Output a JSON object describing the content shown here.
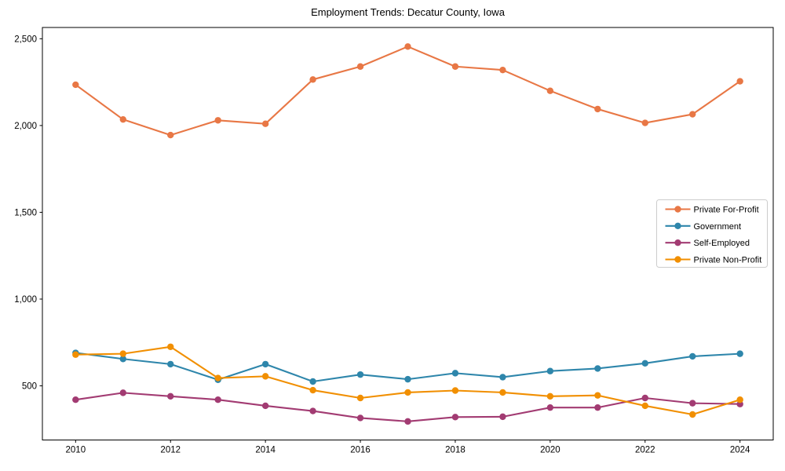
{
  "figure": {
    "background": "#ffffff",
    "frame_color": "#000000",
    "legend_border_color": "#cccccc",
    "legend_background": "#ffffff"
  },
  "chart_data": {
    "type": "line",
    "title": "Employment Trends: Decatur County, Iowa",
    "xlabel": "",
    "ylabel": "",
    "x": [
      2010,
      2011,
      2012,
      2013,
      2014,
      2015,
      2016,
      2017,
      2018,
      2019,
      2020,
      2021,
      2022,
      2023,
      2024
    ],
    "series": [
      {
        "name": "Private For-Profit",
        "color": "#E87745",
        "values": [
          2235,
          2035,
          1945,
          2030,
          2010,
          2265,
          2340,
          2455,
          2340,
          2320,
          2200,
          2095,
          2015,
          2065,
          2255
        ]
      },
      {
        "name": "Government",
        "color": "#2E86AB",
        "values": [
          690,
          655,
          625,
          535,
          625,
          525,
          565,
          538,
          573,
          550,
          585,
          600,
          630,
          670,
          685
        ]
      },
      {
        "name": "Self-Employed",
        "color": "#A23B72",
        "values": [
          420,
          460,
          440,
          420,
          385,
          355,
          315,
          295,
          320,
          322,
          375,
          375,
          430,
          400,
          395
        ]
      },
      {
        "name": "Private Non-Profit",
        "color": "#F18F01",
        "values": [
          680,
          685,
          725,
          545,
          555,
          475,
          430,
          462,
          473,
          462,
          440,
          445,
          385,
          335,
          420
        ]
      }
    ],
    "x_ticks": [
      {
        "v": 2010,
        "label": "2010"
      },
      {
        "v": 2012,
        "label": "2012"
      },
      {
        "v": 2014,
        "label": "2014"
      },
      {
        "v": 2016,
        "label": "2016"
      },
      {
        "v": 2018,
        "label": "2018"
      },
      {
        "v": 2020,
        "label": "2020"
      },
      {
        "v": 2022,
        "label": "2022"
      },
      {
        "v": 2024,
        "label": "2024"
      }
    ],
    "y_ticks": [
      {
        "v": 500,
        "label": "500"
      },
      {
        "v": 1000,
        "label": "1,000"
      },
      {
        "v": 1500,
        "label": "1,500"
      },
      {
        "v": 2000,
        "label": "2,000"
      },
      {
        "v": 2500,
        "label": "2,500"
      }
    ],
    "xlim": [
      2009.3,
      2024.7
    ],
    "ylim": [
      188,
      2565
    ],
    "grid": false,
    "legend_position": "center-right"
  }
}
